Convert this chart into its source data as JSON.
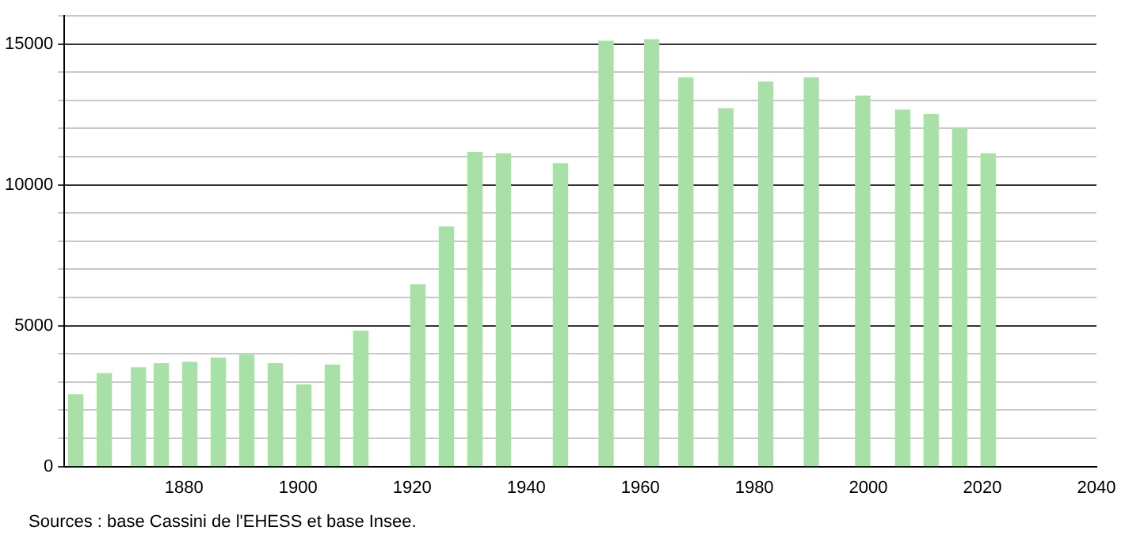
{
  "chart_data": {
    "type": "bar",
    "x": [
      1861,
      1866,
      1872,
      1876,
      1881,
      1886,
      1891,
      1896,
      1901,
      1906,
      1911,
      1921,
      1926,
      1931,
      1936,
      1946,
      1954,
      1962,
      1968,
      1975,
      1982,
      1990,
      1999,
      2006,
      2011,
      2016,
      2021
    ],
    "values": [
      2550,
      3300,
      3500,
      3650,
      3700,
      3850,
      3950,
      3650,
      2900,
      3600,
      4800,
      6450,
      8500,
      11150,
      11100,
      10750,
      15100,
      15150,
      13800,
      12700,
      13650,
      13800,
      13150,
      12650,
      12500,
      12000,
      11100
    ],
    "color": "#a8e0a8",
    "xlim": [
      1859,
      2040
    ],
    "xticks": [
      1880,
      1900,
      1920,
      1940,
      1960,
      1980,
      2000,
      2020,
      2040
    ],
    "ylim": [
      0,
      16000
    ],
    "yticks": [
      0,
      {
        "value": 1000,
        "label": null
      },
      {
        "value": 2000,
        "label": null
      },
      {
        "value": 3000,
        "label": null
      },
      {
        "value": 4000,
        "label": null
      },
      5000,
      {
        "value": 6000,
        "label": null
      },
      {
        "value": 7000,
        "label": null
      },
      {
        "value": 8000,
        "label": null
      },
      {
        "value": 9000,
        "label": null
      },
      10000,
      {
        "value": 11000,
        "label": null
      },
      {
        "value": 12000,
        "label": null
      },
      {
        "value": 13000,
        "label": null
      },
      {
        "value": 14000,
        "label": null
      },
      15000,
      {
        "value": 16000,
        "label": null
      }
    ],
    "grid": "y",
    "annotations": [
      "Sources : base Cassini de l'EHESS et base Insee."
    ]
  }
}
